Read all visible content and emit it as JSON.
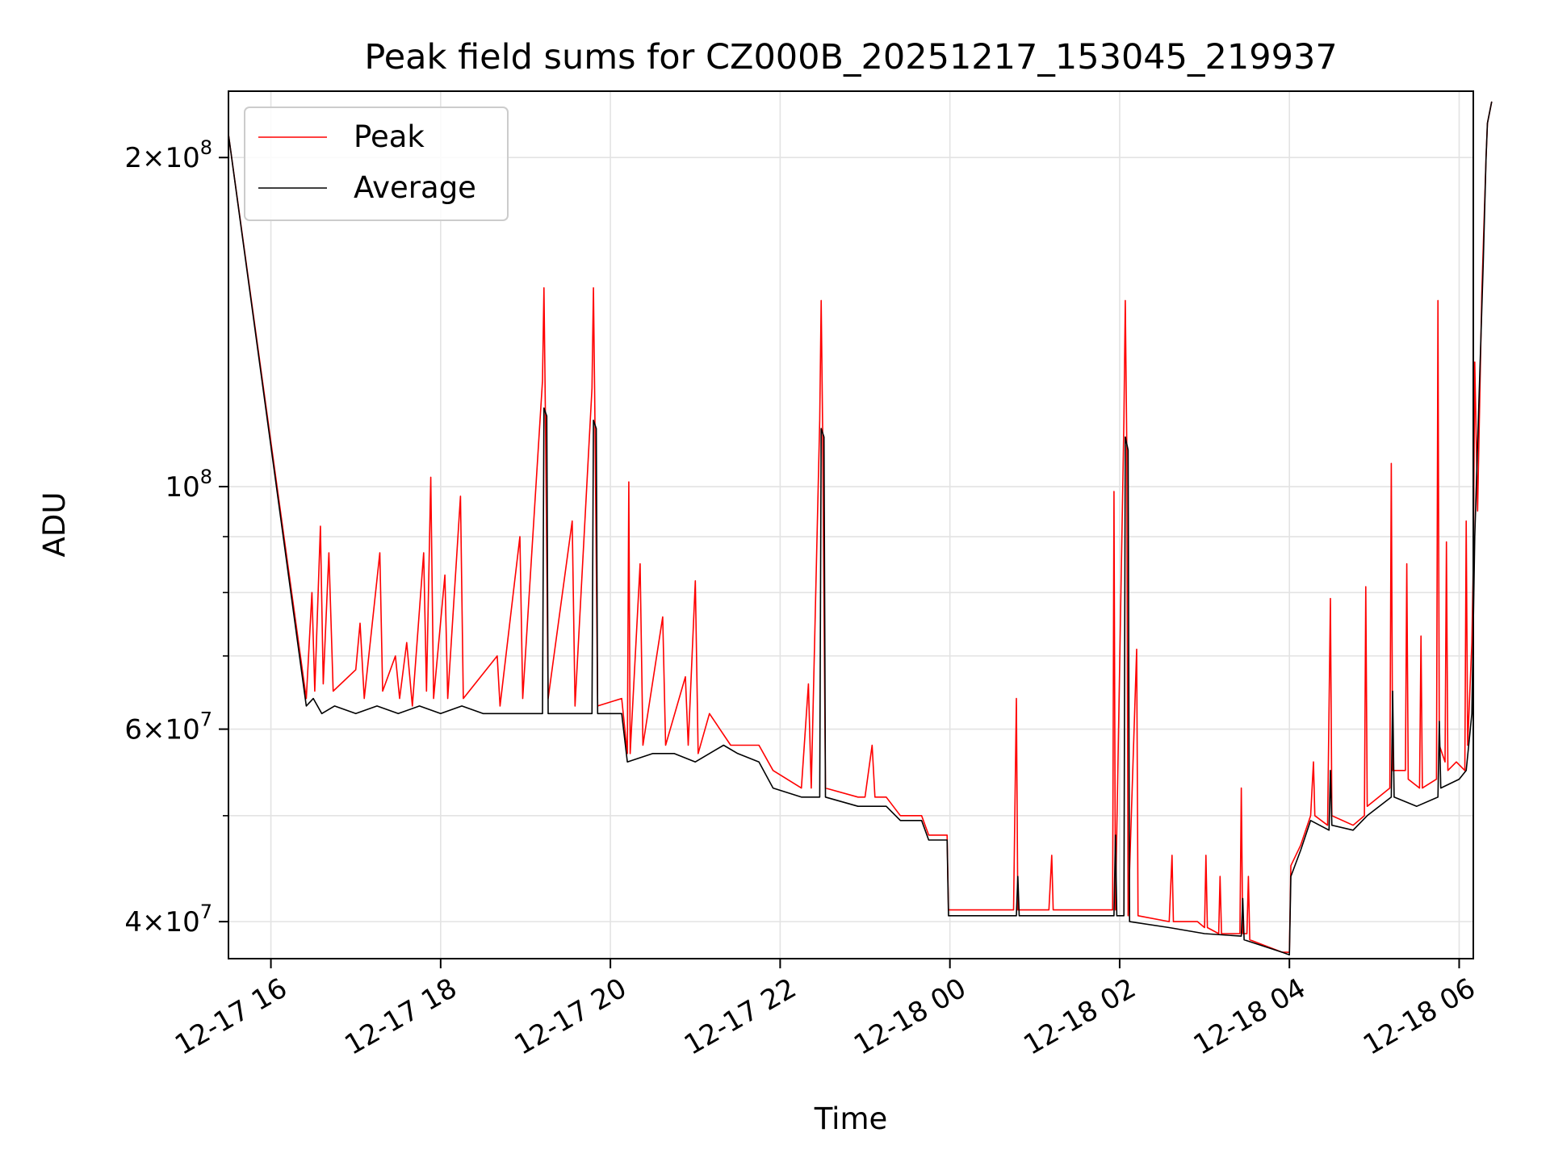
{
  "chart_data": {
    "type": "line",
    "title": "Peak field sums for CZ000B_20251217_153045_219937",
    "xlabel": "Time",
    "ylabel": "ADU",
    "y_scale": "log",
    "ylim": [
      37000000,
      230000000
    ],
    "xlim": [
      "2025-12-17 15:30",
      "2025-12-18 06:10"
    ],
    "x_ticks": [
      {
        "value": "2025-12-17 16:00",
        "label": "12-17 16"
      },
      {
        "value": "2025-12-17 18:00",
        "label": "12-17 18"
      },
      {
        "value": "2025-12-17 20:00",
        "label": "12-17 20"
      },
      {
        "value": "2025-12-17 22:00",
        "label": "12-17 22"
      },
      {
        "value": "2025-12-18 00:00",
        "label": "12-18 00"
      },
      {
        "value": "2025-12-18 02:00",
        "label": "12-18 02"
      },
      {
        "value": "2025-12-18 04:00",
        "label": "12-18 04"
      },
      {
        "value": "2025-12-18 06:00",
        "label": "12-18 06"
      }
    ],
    "y_major_ticks": [
      {
        "value": 40000000,
        "mantissa": "4",
        "exponent": "7"
      },
      {
        "value": 60000000,
        "mantissa": "6",
        "exponent": "7"
      },
      {
        "value": 100000000,
        "mantissa": "",
        "exponent": "8"
      },
      {
        "value": 200000000,
        "mantissa": "2",
        "exponent": "8"
      }
    ],
    "y_minor_ticks": [
      50000000,
      70000000,
      80000000,
      90000000
    ],
    "grid": true,
    "legend_position": "upper-left",
    "series": [
      {
        "name": "Peak",
        "color": "#ff0000",
        "points": [
          [
            "2025-12-17 15:30",
            210000000
          ],
          [
            "2025-12-17 16:25",
            64000000
          ],
          [
            "2025-12-17 16:29",
            80000000
          ],
          [
            "2025-12-17 16:31",
            65000000
          ],
          [
            "2025-12-17 16:35",
            92000000
          ],
          [
            "2025-12-17 16:37",
            66000000
          ],
          [
            "2025-12-17 16:41",
            87000000
          ],
          [
            "2025-12-17 16:44",
            65000000
          ],
          [
            "2025-12-17 17:00",
            68000000
          ],
          [
            "2025-12-17 17:03",
            75000000
          ],
          [
            "2025-12-17 17:06",
            64000000
          ],
          [
            "2025-12-17 17:17",
            87000000
          ],
          [
            "2025-12-17 17:19",
            65000000
          ],
          [
            "2025-12-17 17:28",
            70000000
          ],
          [
            "2025-12-17 17:31",
            64000000
          ],
          [
            "2025-12-17 17:36",
            72000000
          ],
          [
            "2025-12-17 17:40",
            63000000
          ],
          [
            "2025-12-17 17:48",
            87000000
          ],
          [
            "2025-12-17 17:50",
            65000000
          ],
          [
            "2025-12-17 17:53",
            102000000
          ],
          [
            "2025-12-17 17:55",
            64000000
          ],
          [
            "2025-12-17 18:03",
            83000000
          ],
          [
            "2025-12-17 18:05",
            64000000
          ],
          [
            "2025-12-17 18:14",
            98000000
          ],
          [
            "2025-12-17 18:16",
            64000000
          ],
          [
            "2025-12-17 18:40",
            70000000
          ],
          [
            "2025-12-17 18:42",
            63000000
          ],
          [
            "2025-12-17 18:56",
            90000000
          ],
          [
            "2025-12-17 18:58",
            64000000
          ],
          [
            "2025-12-17 19:12",
            125000000
          ],
          [
            "2025-12-17 19:13",
            152000000
          ],
          [
            "2025-12-17 19:14",
            118000000
          ],
          [
            "2025-12-17 19:16",
            64000000
          ],
          [
            "2025-12-17 19:33",
            93000000
          ],
          [
            "2025-12-17 19:35",
            63000000
          ],
          [
            "2025-12-17 19:47",
            123000000
          ],
          [
            "2025-12-17 19:48",
            152000000
          ],
          [
            "2025-12-17 19:49",
            118000000
          ],
          [
            "2025-12-17 19:51",
            63000000
          ],
          [
            "2025-12-17 20:08",
            64000000
          ],
          [
            "2025-12-17 20:12",
            57000000
          ],
          [
            "2025-12-17 20:13",
            101000000
          ],
          [
            "2025-12-17 20:14",
            57000000
          ],
          [
            "2025-12-17 20:21",
            85000000
          ],
          [
            "2025-12-17 20:23",
            58000000
          ],
          [
            "2025-12-17 20:37",
            76000000
          ],
          [
            "2025-12-17 20:39",
            58000000
          ],
          [
            "2025-12-17 20:53",
            67000000
          ],
          [
            "2025-12-17 20:55",
            58000000
          ],
          [
            "2025-12-17 21:00",
            82000000
          ],
          [
            "2025-12-17 21:02",
            57000000
          ],
          [
            "2025-12-17 21:10",
            62000000
          ],
          [
            "2025-12-17 21:25",
            58000000
          ],
          [
            "2025-12-17 21:45",
            58000000
          ],
          [
            "2025-12-17 21:55",
            55000000
          ],
          [
            "2025-12-17 22:15",
            53000000
          ],
          [
            "2025-12-17 22:20",
            66000000
          ],
          [
            "2025-12-17 22:22",
            53000000
          ],
          [
            "2025-12-17 22:28",
            115000000
          ],
          [
            "2025-12-17 22:29",
            148000000
          ],
          [
            "2025-12-17 22:30",
            113000000
          ],
          [
            "2025-12-17 22:32",
            53000000
          ],
          [
            "2025-12-17 22:55",
            52000000
          ],
          [
            "2025-12-17 23:00",
            52000000
          ],
          [
            "2025-12-17 23:05",
            58000000
          ],
          [
            "2025-12-17 23:07",
            52000000
          ],
          [
            "2025-12-17 23:15",
            52000000
          ],
          [
            "2025-12-17 23:25",
            50000000
          ],
          [
            "2025-12-17 23:40",
            50000000
          ],
          [
            "2025-12-17 23:45",
            48000000
          ],
          [
            "2025-12-17 23:58",
            48000000
          ],
          [
            "2025-12-17 23:59",
            41000000
          ],
          [
            "2025-12-18 00:45",
            41000000
          ],
          [
            "2025-12-18 00:47",
            64000000
          ],
          [
            "2025-12-18 00:48",
            41000000
          ],
          [
            "2025-12-18 01:10",
            41000000
          ],
          [
            "2025-12-18 01:12",
            46000000
          ],
          [
            "2025-12-18 01:13",
            41000000
          ],
          [
            "2025-12-18 01:55",
            41000000
          ],
          [
            "2025-12-18 01:56",
            99000000
          ],
          [
            "2025-12-18 01:57",
            41000000
          ],
          [
            "2025-12-18 02:03",
            115000000
          ],
          [
            "2025-12-18 02:04",
            148000000
          ],
          [
            "2025-12-18 02:05",
            110000000
          ],
          [
            "2025-12-18 02:06",
            40500000
          ],
          [
            "2025-12-18 02:12",
            71000000
          ],
          [
            "2025-12-18 02:13",
            40500000
          ],
          [
            "2025-12-18 02:35",
            40000000
          ],
          [
            "2025-12-18 02:37",
            46000000
          ],
          [
            "2025-12-18 02:38",
            40000000
          ],
          [
            "2025-12-18 02:55",
            40000000
          ],
          [
            "2025-12-18 03:00",
            39500000
          ],
          [
            "2025-12-18 03:01",
            46000000
          ],
          [
            "2025-12-18 03:02",
            39500000
          ],
          [
            "2025-12-18 03:10",
            39000000
          ],
          [
            "2025-12-18 03:11",
            44000000
          ],
          [
            "2025-12-18 03:12",
            39000000
          ],
          [
            "2025-12-18 03:25",
            39000000
          ],
          [
            "2025-12-18 03:26",
            53000000
          ],
          [
            "2025-12-18 03:27",
            39000000
          ],
          [
            "2025-12-18 03:30",
            39000000
          ],
          [
            "2025-12-18 03:31",
            44000000
          ],
          [
            "2025-12-18 03:32",
            38500000
          ],
          [
            "2025-12-18 03:55",
            37500000
          ],
          [
            "2025-12-18 04:00",
            37500000
          ],
          [
            "2025-12-18 04:01",
            45000000
          ],
          [
            "2025-12-18 04:08",
            47000000
          ],
          [
            "2025-12-18 04:15",
            50000000
          ],
          [
            "2025-12-18 04:17",
            56000000
          ],
          [
            "2025-12-18 04:18",
            50000000
          ],
          [
            "2025-12-18 04:27",
            49000000
          ],
          [
            "2025-12-18 04:29",
            79000000
          ],
          [
            "2025-12-18 04:30",
            50000000
          ],
          [
            "2025-12-18 04:45",
            49000000
          ],
          [
            "2025-12-18 04:53",
            50000000
          ],
          [
            "2025-12-18 04:54",
            81000000
          ],
          [
            "2025-12-18 04:55",
            51000000
          ],
          [
            "2025-12-18 05:11",
            53000000
          ],
          [
            "2025-12-18 05:12",
            105000000
          ],
          [
            "2025-12-18 05:13",
            55000000
          ],
          [
            "2025-12-18 05:22",
            55000000
          ],
          [
            "2025-12-18 05:23",
            85000000
          ],
          [
            "2025-12-18 05:24",
            54000000
          ],
          [
            "2025-12-18 05:32",
            53000000
          ],
          [
            "2025-12-18 05:33",
            73000000
          ],
          [
            "2025-12-18 05:34",
            53000000
          ],
          [
            "2025-12-18 05:44",
            54000000
          ],
          [
            "2025-12-18 05:45",
            148000000
          ],
          [
            "2025-12-18 05:46",
            58000000
          ],
          [
            "2025-12-18 05:50",
            56000000
          ],
          [
            "2025-12-18 05:51",
            89000000
          ],
          [
            "2025-12-18 05:52",
            55000000
          ],
          [
            "2025-12-18 05:58",
            56000000
          ],
          [
            "2025-12-18 06:04",
            55000000
          ],
          [
            "2025-12-18 06:05",
            93000000
          ],
          [
            "2025-12-18 06:06",
            58000000
          ],
          [
            "2025-12-18 06:09",
            72000000
          ],
          [
            "2025-12-18 06:10",
            85000000
          ],
          [
            "2025-12-18 06:11",
            130000000
          ],
          [
            "2025-12-18 06:13",
            95000000
          ],
          [
            "2025-12-18 06:16",
            150000000
          ],
          [
            "2025-12-18 06:19",
            200000000
          ],
          [
            "2025-12-18 06:20",
            215000000
          ],
          [
            "2025-12-18 06:23",
            225000000
          ]
        ]
      },
      {
        "name": "Average",
        "color": "#000000",
        "points": [
          [
            "2025-12-17 15:30",
            210000000
          ],
          [
            "2025-12-17 16:25",
            63000000
          ],
          [
            "2025-12-17 16:30",
            64000000
          ],
          [
            "2025-12-17 16:36",
            62000000
          ],
          [
            "2025-12-17 16:45",
            63000000
          ],
          [
            "2025-12-17 17:00",
            62000000
          ],
          [
            "2025-12-17 17:15",
            63000000
          ],
          [
            "2025-12-17 17:30",
            62000000
          ],
          [
            "2025-12-17 17:45",
            63000000
          ],
          [
            "2025-12-17 18:00",
            62000000
          ],
          [
            "2025-12-17 18:15",
            63000000
          ],
          [
            "2025-12-17 18:30",
            62000000
          ],
          [
            "2025-12-17 18:45",
            62000000
          ],
          [
            "2025-12-17 19:00",
            62000000
          ],
          [
            "2025-12-17 19:12",
            62000000
          ],
          [
            "2025-12-17 19:13",
            118000000
          ],
          [
            "2025-12-17 19:15",
            116000000
          ],
          [
            "2025-12-17 19:16",
            62000000
          ],
          [
            "2025-12-17 19:30",
            62000000
          ],
          [
            "2025-12-17 19:47",
            62000000
          ],
          [
            "2025-12-17 19:48",
            115000000
          ],
          [
            "2025-12-17 19:50",
            113000000
          ],
          [
            "2025-12-17 19:51",
            62000000
          ],
          [
            "2025-12-17 20:08",
            62000000
          ],
          [
            "2025-12-17 20:12",
            56000000
          ],
          [
            "2025-12-17 20:30",
            57000000
          ],
          [
            "2025-12-17 20:45",
            57000000
          ],
          [
            "2025-12-17 21:00",
            56000000
          ],
          [
            "2025-12-17 21:10",
            57000000
          ],
          [
            "2025-12-17 21:20",
            58000000
          ],
          [
            "2025-12-17 21:30",
            57000000
          ],
          [
            "2025-12-17 21:45",
            56000000
          ],
          [
            "2025-12-17 21:55",
            53000000
          ],
          [
            "2025-12-17 22:15",
            52000000
          ],
          [
            "2025-12-17 22:28",
            52000000
          ],
          [
            "2025-12-17 22:29",
            113000000
          ],
          [
            "2025-12-17 22:31",
            111000000
          ],
          [
            "2025-12-17 22:32",
            52000000
          ],
          [
            "2025-12-17 22:55",
            51000000
          ],
          [
            "2025-12-17 23:15",
            51000000
          ],
          [
            "2025-12-17 23:25",
            49500000
          ],
          [
            "2025-12-17 23:40",
            49500000
          ],
          [
            "2025-12-17 23:45",
            47500000
          ],
          [
            "2025-12-17 23:58",
            47500000
          ],
          [
            "2025-12-17 23:59",
            40500000
          ],
          [
            "2025-12-18 00:47",
            40500000
          ],
          [
            "2025-12-18 00:48",
            44000000
          ],
          [
            "2025-12-18 00:49",
            40500000
          ],
          [
            "2025-12-18 01:30",
            40500000
          ],
          [
            "2025-12-18 01:56",
            40500000
          ],
          [
            "2025-12-18 01:57",
            48000000
          ],
          [
            "2025-12-18 01:58",
            40500000
          ],
          [
            "2025-12-18 02:03",
            40500000
          ],
          [
            "2025-12-18 02:04",
            111000000
          ],
          [
            "2025-12-18 02:06",
            108000000
          ],
          [
            "2025-12-18 02:07",
            40000000
          ],
          [
            "2025-12-18 02:35",
            39500000
          ],
          [
            "2025-12-18 03:00",
            39000000
          ],
          [
            "2025-12-18 03:26",
            38800000
          ],
          [
            "2025-12-18 03:27",
            42000000
          ],
          [
            "2025-12-18 03:28",
            38500000
          ],
          [
            "2025-12-18 03:55",
            37500000
          ],
          [
            "2025-12-18 04:00",
            37300000
          ],
          [
            "2025-12-18 04:01",
            44000000
          ],
          [
            "2025-12-18 04:08",
            46500000
          ],
          [
            "2025-12-18 04:15",
            49500000
          ],
          [
            "2025-12-18 04:28",
            48500000
          ],
          [
            "2025-12-18 04:29",
            55000000
          ],
          [
            "2025-12-18 04:30",
            49000000
          ],
          [
            "2025-12-18 04:45",
            48500000
          ],
          [
            "2025-12-18 04:55",
            50000000
          ],
          [
            "2025-12-18 05:12",
            52000000
          ],
          [
            "2025-12-18 05:13",
            65000000
          ],
          [
            "2025-12-18 05:14",
            52000000
          ],
          [
            "2025-12-18 05:30",
            51000000
          ],
          [
            "2025-12-18 05:45",
            52000000
          ],
          [
            "2025-12-18 05:46",
            61000000
          ],
          [
            "2025-12-18 05:47",
            53000000
          ],
          [
            "2025-12-18 06:00",
            54000000
          ],
          [
            "2025-12-18 06:05",
            55000000
          ],
          [
            "2025-12-18 06:09",
            62000000
          ],
          [
            "2025-12-18 06:11",
            90000000
          ],
          [
            "2025-12-18 06:14",
            120000000
          ],
          [
            "2025-12-18 06:17",
            160000000
          ],
          [
            "2025-12-18 06:19",
            200000000
          ],
          [
            "2025-12-18 06:20",
            215000000
          ],
          [
            "2025-12-18 06:23",
            225000000
          ]
        ]
      }
    ]
  }
}
